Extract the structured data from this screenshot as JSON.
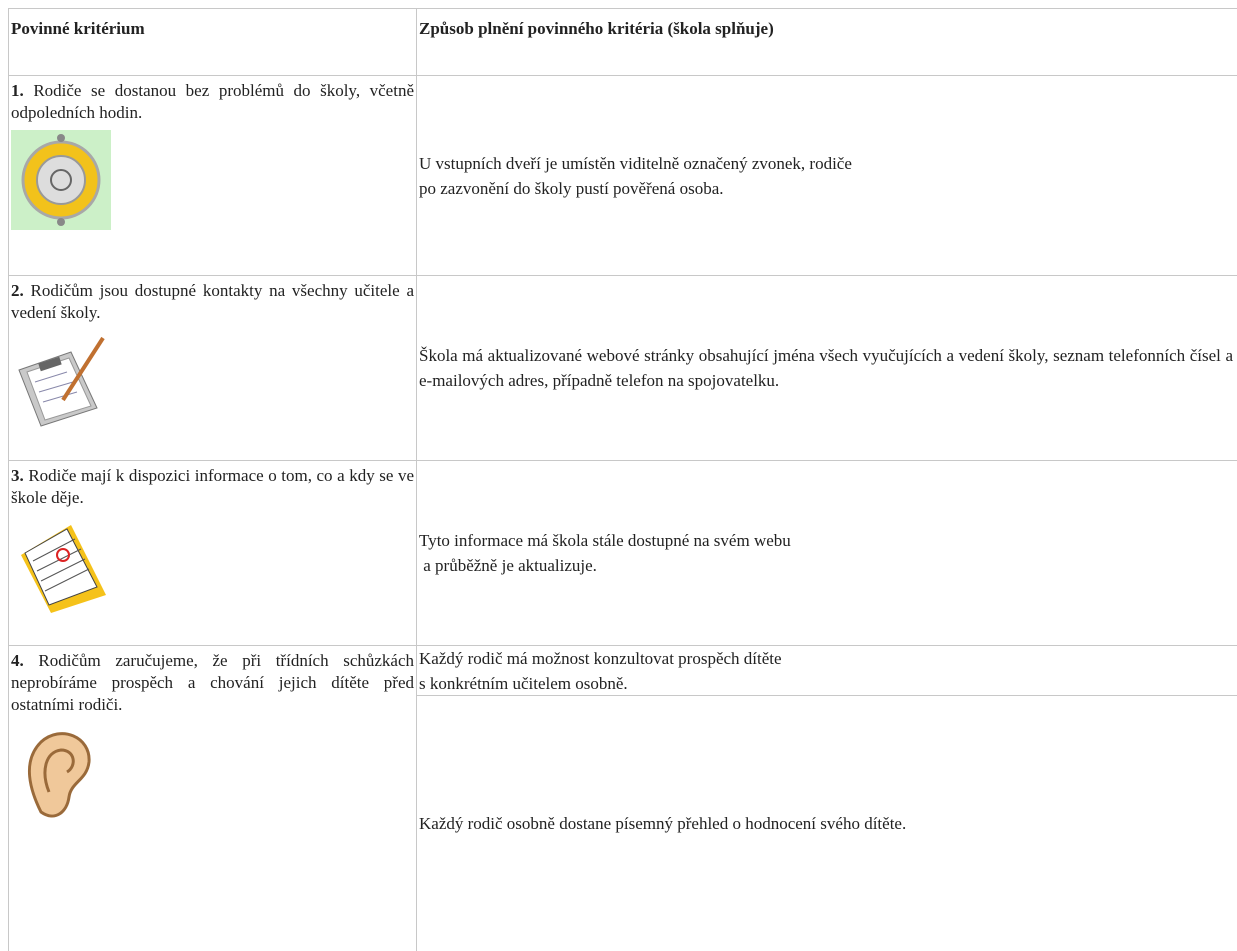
{
  "table": {
    "header": [
      "Povinné kritérium",
      "Způsob plnění povinného kritéria (škola splňuje)"
    ],
    "rows": [
      {
        "number": "1.",
        "criterion": "Rodiče se dostanou bez problémů do školy, včetně odpoledních hodin.",
        "fulfillment": [
          [
            "U vstupních dveří je umístěn viditelně označený zvonek, rodiče",
            "po zazvonění do školy pustí pověřená osoba."
          ]
        ]
      },
      {
        "number": "2.",
        "criterion": "Rodičům jsou dostupné kontakty na všechny učitele a vedení školy.",
        "fulfillment": [
          [
            "Škola má aktualizované webové stránky obsahující jména všech vyučujících a vedení školy, seznam telefonních čísel a e-mailových adres, případně telefon na spojovatelku."
          ]
        ]
      },
      {
        "number": "3.",
        "criterion": "Rodiče mají k dispozici informace o tom, co a kdy se ve škole děje.",
        "fulfillment": [
          [
            "Tyto informace má škola stále dostupné na svém webu",
            " a průběžně je aktualizuje."
          ]
        ]
      },
      {
        "number": "4.",
        "criterion": "Rodičům zaručujeme, že při třídních schůzkách neprobíráme prospěch a chování jejich dítěte před ostatními rodiči.",
        "fulfillment": [
          [
            "Každý rodič má možnost konzultovat prospěch dítěte",
            "s konkrétním učitelem osobně."
          ],
          [
            "Každý rodič osobně dostane písemný přehled o hodnocení svého dítěte."
          ]
        ]
      }
    ]
  }
}
